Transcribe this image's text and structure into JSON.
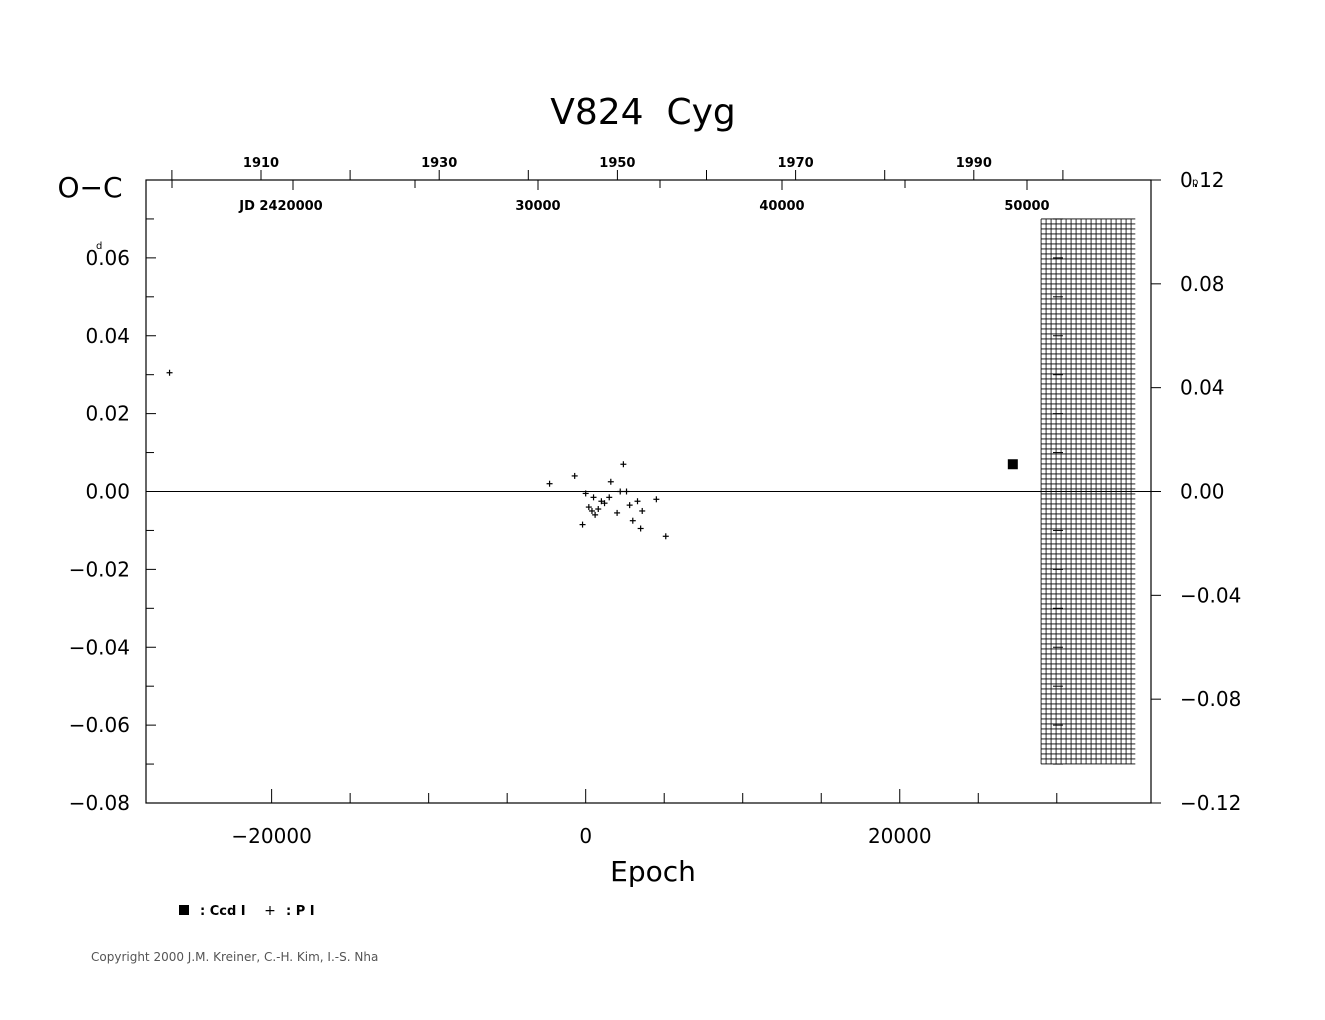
{
  "chart_data": {
    "type": "scatter",
    "title": "V824  Cyg",
    "xlabel": "Epoch",
    "ylabel": "O−C",
    "left_unit": "d",
    "right_unit": "p",
    "xlim": [
      -28000,
      36000
    ],
    "ylim": [
      -0.08,
      0.08
    ],
    "right_ylim": [
      -0.12,
      0.12
    ],
    "x_ticks": [
      -20000,
      0,
      20000
    ],
    "x_tick_labels": [
      "−20000",
      "0",
      "20000"
    ],
    "y_ticks": [
      -0.08,
      -0.06,
      -0.04,
      -0.02,
      0.0,
      0.02,
      0.04,
      0.06
    ],
    "y_tick_labels": [
      "−0.08",
      "−0.06",
      "−0.04",
      "−0.02",
      "0.00",
      "0.02",
      "0.04",
      "0.06"
    ],
    "y_first_label": "0.06",
    "right_ticks": [
      -0.12,
      -0.08,
      -0.04,
      0.0,
      0.04,
      0.08,
      0.12
    ],
    "right_tick_labels": [
      "−0.12",
      "−0.08",
      "−0.04",
      "0.00",
      "0.04",
      "0.08",
      "0.12"
    ],
    "top_year_ticks": [
      1910,
      1930,
      1950,
      1970,
      1990
    ],
    "top_year_labels": [
      "1910",
      "1930",
      "1950",
      "1970",
      "1990"
    ],
    "top_jd_labels": [
      "JD 2420000",
      "30000",
      "40000",
      "50000"
    ],
    "hatched_region_epoch": [
      29000,
      35000
    ],
    "hatched_region_oc": [
      -0.07,
      0.07
    ],
    "series": [
      {
        "name": ": Ccd I",
        "marker": "square",
        "points": [
          [
            27200,
            0.007
          ]
        ]
      },
      {
        "name": ": P I",
        "marker": "plus",
        "points": [
          [
            -26500,
            0.0305
          ],
          [
            -2300,
            0.002
          ],
          [
            -700,
            0.004
          ],
          [
            0,
            -0.0005
          ],
          [
            -200,
            -0.0085
          ],
          [
            200,
            -0.004
          ],
          [
            400,
            -0.005
          ],
          [
            500,
            -0.0015
          ],
          [
            600,
            -0.006
          ],
          [
            800,
            -0.0045
          ],
          [
            1000,
            -0.0025
          ],
          [
            1200,
            -0.003
          ],
          [
            1500,
            -0.0015
          ],
          [
            1600,
            0.0025
          ],
          [
            2000,
            -0.0055
          ],
          [
            2200,
            0.0
          ],
          [
            2400,
            0.007
          ],
          [
            2600,
            0.0
          ],
          [
            2800,
            -0.0035
          ],
          [
            3000,
            -0.0075
          ],
          [
            3300,
            -0.0025
          ],
          [
            3500,
            -0.0095
          ],
          [
            3600,
            -0.005
          ],
          [
            4500,
            -0.002
          ],
          [
            5100,
            -0.0115
          ]
        ]
      }
    ],
    "legend_position": "bottom-left"
  },
  "copyright": "Copyright 2000 J.M. Kreiner, C.-H. Kim, I.-S. Nha"
}
